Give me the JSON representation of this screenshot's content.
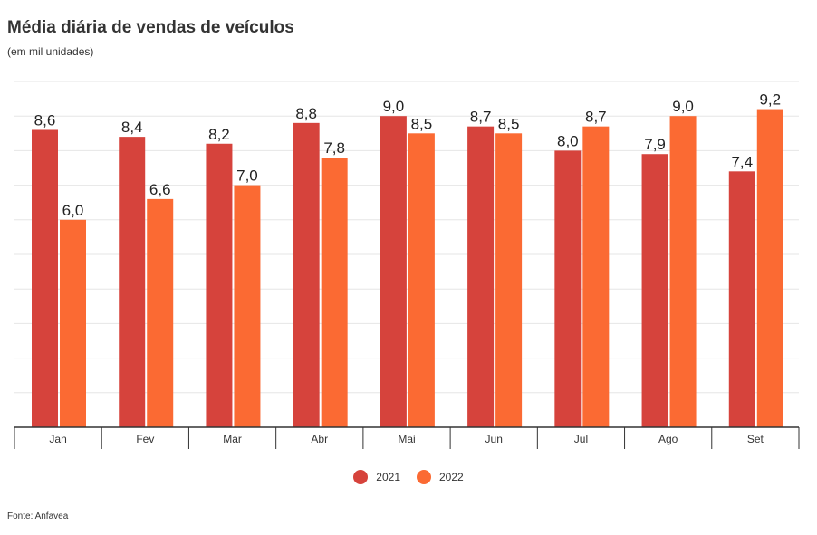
{
  "header": {
    "title": "Média diária de vendas de veículos",
    "subtitle": "(em mil unidades)"
  },
  "footer": {
    "source": "Fonte: Anfavea"
  },
  "colors": {
    "series_2021": "#d6433c",
    "series_2022": "#fb6a33",
    "grid": "#e6e6e6",
    "axis": "#333333"
  },
  "chart_data": {
    "type": "bar",
    "title": "Média diária de vendas de veículos",
    "subtitle": "(em mil unidades)",
    "xlabel": "",
    "ylabel": "",
    "categories": [
      "Jan",
      "Fev",
      "Mar",
      "Abr",
      "Mai",
      "Jun",
      "Jul",
      "Ago",
      "Set"
    ],
    "series": [
      {
        "name": "2021",
        "values": [
          8.6,
          8.4,
          8.2,
          8.8,
          9.0,
          8.7,
          8.0,
          7.9,
          7.4
        ],
        "labels": [
          "8,6",
          "8,4",
          "8,2",
          "8,8",
          "9,0",
          "8,7",
          "8,0",
          "7,9",
          "7,4"
        ]
      },
      {
        "name": "2022",
        "values": [
          6.0,
          6.6,
          7.0,
          7.8,
          8.5,
          8.5,
          8.7,
          9.0,
          9.2
        ],
        "labels": [
          "6,0",
          "6,6",
          "7,0",
          "7,8",
          "8,5",
          "8,5",
          "8,7",
          "9,0",
          "9,2"
        ]
      }
    ],
    "ylim": [
      0,
      10
    ],
    "grid": true,
    "legend_position": "bottom-center"
  }
}
